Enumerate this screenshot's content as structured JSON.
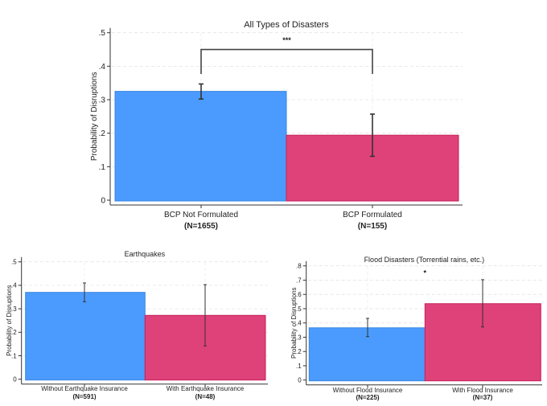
{
  "chart_data": [
    {
      "type": "bar",
      "title": "All Types of Disasters",
      "ylabel": "Probability of Disruptions",
      "xlabel": "",
      "ylim": [
        0,
        0.5
      ],
      "yticks": [
        0,
        0.1,
        0.2,
        0.3,
        0.4,
        0.5
      ],
      "ytick_labels": [
        "0",
        ".1",
        ".2",
        ".3",
        ".4",
        ".5"
      ],
      "grid": true,
      "categories": [
        "BCP Not Formulated",
        "BCP Formulated"
      ],
      "category_n": [
        "(N=1655)",
        "(N=155)"
      ],
      "values": [
        0.325,
        0.194
      ],
      "ci_low": [
        0.302,
        0.131
      ],
      "ci_high": [
        0.347,
        0.257
      ],
      "colors": [
        "#4a9bfd",
        "#de4279"
      ],
      "significance": {
        "label": "***",
        "bracket_level": 0.45,
        "bracket_bottom": 0.377
      }
    },
    {
      "type": "bar",
      "title": "Earthquakes",
      "ylabel": "Probability of Disruptions",
      "xlabel": "",
      "ylim": [
        0,
        0.5
      ],
      "yticks": [
        0,
        0.1,
        0.2,
        0.3,
        0.4,
        0.5
      ],
      "ytick_labels": [
        "0",
        ".1",
        ".2",
        ".3",
        ".4",
        ".5"
      ],
      "grid": true,
      "categories": [
        "Without Earthquake Insurance",
        "With Earthquake Insurance"
      ],
      "category_n": [
        "(N=591)",
        "(N=48)"
      ],
      "values": [
        0.37,
        0.272
      ],
      "ci_low": [
        0.33,
        0.142
      ],
      "ci_high": [
        0.41,
        0.403
      ],
      "colors": [
        "#4a9bfd",
        "#de4279"
      ]
    },
    {
      "type": "bar",
      "title": "Flood Disasters (Torrential rains, etc.)",
      "ylabel": "Probability of Disruptions",
      "xlabel": "",
      "ylim": [
        0,
        0.8
      ],
      "yticks": [
        0,
        0.1,
        0.2,
        0.3,
        0.4,
        0.5,
        0.6,
        0.7,
        0.8
      ],
      "ytick_labels": [
        "0",
        ".1",
        ".2",
        ".3",
        ".4",
        ".5",
        ".6",
        ".7",
        ".8"
      ],
      "grid": true,
      "categories": [
        "Without Flood Insurance",
        "With Flood Insurance"
      ],
      "category_n": [
        "(N=225)",
        "(N=37)"
      ],
      "values": [
        0.366,
        0.535
      ],
      "ci_low": [
        0.304,
        0.372
      ],
      "ci_high": [
        0.432,
        0.703
      ],
      "colors": [
        "#4a9bfd",
        "#de4279"
      ],
      "significance": {
        "label": "*",
        "level": 0.755
      }
    }
  ]
}
